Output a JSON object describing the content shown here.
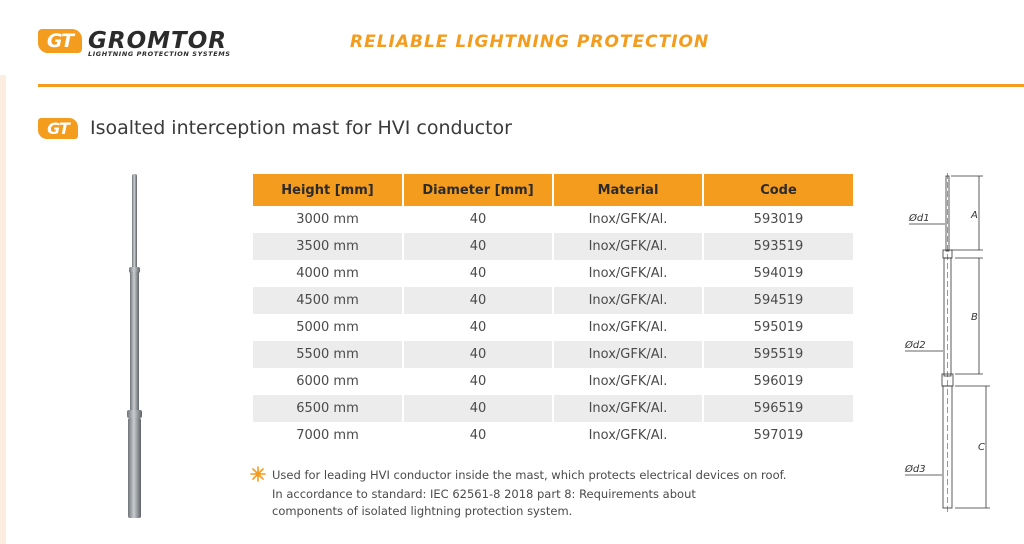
{
  "brand": {
    "badge": "GT",
    "name": "GROMTOR",
    "tagline": "LIGHTNING PROTECTION SYSTEMS",
    "slogan": "RELIABLE LIGHTNING PROTECTION",
    "accent_color": "#f39c1e"
  },
  "section": {
    "badge": "GT",
    "title": "Isoalted interception mast for HVI conductor"
  },
  "table": {
    "headers": [
      "Height [mm]",
      "Diameter [mm]",
      "Material",
      "Code"
    ],
    "rows": [
      [
        "3000 mm",
        "40",
        "Inox/GFK/Al.",
        "593019"
      ],
      [
        "3500 mm",
        "40",
        "Inox/GFK/Al.",
        "593519"
      ],
      [
        "4000 mm",
        "40",
        "Inox/GFK/Al.",
        "594019"
      ],
      [
        "4500 mm",
        "40",
        "Inox/GFK/Al.",
        "594519"
      ],
      [
        "5000 mm",
        "40",
        "Inox/GFK/Al.",
        "595019"
      ],
      [
        "5500 mm",
        "40",
        "Inox/GFK/Al.",
        "595519"
      ],
      [
        "6000 mm",
        "40",
        "Inox/GFK/Al.",
        "596019"
      ],
      [
        "6500 mm",
        "40",
        "Inox/GFK/Al.",
        "596519"
      ],
      [
        "7000 mm",
        "40",
        "Inox/GFK/Al.",
        "597019"
      ]
    ]
  },
  "notes": {
    "icon": "sun-icon",
    "line1": "Used for leading HVI conductor inside the mast, which protects electrical devices on roof.",
    "line2": "In accordance to standard: IEC 62561-8 2018 part 8: Requirements about",
    "line3": "components of isolated lightning protection system."
  },
  "drawing": {
    "d1": "Ød1",
    "d2": "Ød2",
    "d3": "Ød3",
    "a": "A",
    "b": "B",
    "c": "C"
  }
}
